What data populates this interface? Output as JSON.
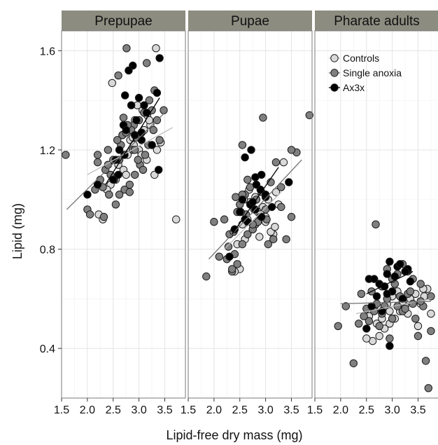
{
  "chart_data": {
    "type": "scatter",
    "xlabel": "Lipid-free dry mass (mg)",
    "ylabel": "Lipid (mg)",
    "xlim": [
      1.5,
      3.9
    ],
    "ylim": [
      0.2,
      1.68
    ],
    "x_ticks": [
      "1.5",
      "2.0",
      "2.5",
      "3.0",
      "3.5"
    ],
    "y_ticks": [
      "0.4",
      "0.8",
      "1.2",
      "1.6"
    ],
    "grid": true,
    "legend": {
      "position": "top-right of third panel",
      "entries": [
        "Controls",
        "Single anoxia",
        "Ax3x"
      ]
    },
    "colors": {
      "Controls": "#d9d9d9",
      "Single anoxia": "#808080",
      "Ax3x": "#000000",
      "strip": "#8c8c80"
    },
    "panels": [
      {
        "name": "Prepupae",
        "series": [
          {
            "name": "Controls",
            "x": [
              3.33,
              2.48,
              2.97,
              3.07,
              3.16,
              3.22,
              2.68,
              2.83,
              2.9,
              3.0,
              3.05,
              3.15,
              3.25,
              2.6,
              2.7,
              2.75,
              3.35,
              3.42,
              3.1,
              3.2,
              2.55,
              2.45,
              2.38,
              2.22,
              2.3,
              3.72,
              3.3,
              2.92,
              2.88,
              2.78
            ],
            "y": [
              1.61,
              1.47,
              1.38,
              1.36,
              1.34,
              1.3,
              1.26,
              1.24,
              1.22,
              1.2,
              1.18,
              1.16,
              1.22,
              1.14,
              1.12,
              1.1,
              1.2,
              1.23,
              1.28,
              1.32,
              1.08,
              1.06,
              1.04,
              0.94,
              0.92,
              0.92,
              1.1,
              1.32,
              1.25,
              1.18
            ]
          },
          {
            "name": "Single anoxia",
            "x": [
              2.76,
              3.15,
              3.3,
              2.6,
              3.48,
              1.58,
              2.2,
              3.35,
              3.2,
              3.1,
              2.9,
              2.85,
              2.95,
              2.7,
              2.65,
              2.4,
              2.5,
              2.35,
              2.25,
              2.0,
              2.05,
              2.32,
              2.55,
              2.62,
              2.72,
              2.82,
              2.92,
              3.02,
              3.12,
              3.28,
              2.45,
              2.4,
              2.58,
              2.68,
              2.78,
              2.88,
              2.98,
              3.08,
              3.18,
              2.52,
              2.42,
              2.3,
              2.15,
              2.62,
              2.82,
              2.92,
              3.25,
              3.4,
              2.2,
              2.75,
              3.0
            ],
            "y": [
              1.61,
              1.55,
              1.44,
              1.5,
              1.36,
              1.18,
              1.18,
              1.32,
              1.4,
              1.35,
              1.3,
              1.28,
              1.25,
              1.33,
              1.22,
              1.2,
              1.16,
              1.12,
              1.08,
              0.96,
              0.94,
              0.93,
              0.98,
              1.02,
              1.04,
              1.06,
              1.1,
              1.14,
              1.18,
              1.28,
              1.1,
              1.14,
              1.24,
              1.26,
              1.3,
              1.2,
              1.16,
              1.12,
              1.22,
              1.08,
              1.02,
              1.05,
              1.04,
              1.16,
              1.03,
              1.2,
              1.36,
              1.24,
              1.15,
              1.27,
              1.32
            ]
          },
          {
            "name": "Ax3x",
            "x": [
              3.4,
              2.88,
              2.8,
              2.73,
              3.0,
              3.1,
              3.15,
              2.7,
              2.75,
              2.92,
              3.05,
              3.25,
              3.38,
              2.62,
              2.55,
              2.2,
              2.0,
              2.85,
              2.95,
              3.05,
              2.6,
              2.5,
              3.35,
              2.72
            ],
            "y": [
              1.57,
              1.54,
              1.52,
              1.42,
              1.41,
              1.38,
              1.35,
              1.3,
              1.28,
              1.26,
              1.24,
              1.22,
              1.12,
              1.2,
              1.16,
              1.06,
              1.02,
              1.38,
              1.32,
              1.27,
              1.1,
              1.08,
              1.43,
              1.18
            ]
          }
        ],
        "fits": [
          {
            "name": "Controls",
            "x": [
              2.0,
              3.65
            ],
            "y": [
              1.1,
              1.29
            ]
          },
          {
            "name": "Single anoxia",
            "x": [
              1.6,
              3.5
            ],
            "y": [
              0.96,
              1.35
            ]
          },
          {
            "name": "Ax3x",
            "x": [
              2.35,
              3.4
            ],
            "y": [
              1.06,
              1.41
            ]
          }
        ]
      },
      {
        "name": "Pupae",
        "series": [
          {
            "name": "Controls",
            "x": [
              3.35,
              3.2,
              3.25,
              2.6,
              2.45,
              2.55,
              2.65,
              2.75,
              2.85,
              2.95,
              3.05,
              3.15,
              2.5,
              2.4,
              2.7,
              2.8,
              2.9,
              3.0,
              3.1,
              3.0,
              2.58,
              2.68,
              2.78,
              2.88,
              3.18
            ],
            "y": [
              1.15,
              1.03,
              0.98,
              0.84,
              0.82,
              0.9,
              0.92,
              0.88,
              0.95,
              0.97,
              1.0,
              0.86,
              0.72,
              0.71,
              0.99,
              1.01,
              0.94,
              0.91,
              0.87,
              0.93,
              1.0,
              1.04,
              0.96,
              0.85,
              0.89
            ]
          },
          {
            "name": "Single anoxia",
            "x": [
              2.95,
              3.85,
              2.55,
              3.6,
              1.85,
              2.1,
              2.2,
              2.3,
              2.4,
              2.5,
              2.6,
              2.7,
              2.8,
              2.9,
              3.0,
              3.1,
              3.2,
              3.3,
              3.4,
              3.5,
              2.35,
              2.45,
              2.55,
              2.65,
              2.75,
              2.85,
              2.45,
              2.55,
              2.65,
              3.05,
              2.0,
              2.25,
              2.35,
              3.3,
              2.62,
              2.72,
              2.82,
              2.92,
              3.02,
              2.42,
              2.52,
              3.15,
              2.38,
              2.28,
              2.75,
              3.5
            ],
            "y": [
              1.33,
              1.34,
              1.22,
              1.19,
              0.69,
              0.77,
              0.92,
              0.86,
              0.78,
              0.98,
              1.02,
              1.05,
              0.9,
              0.93,
              0.96,
              1.07,
              1.15,
              1.05,
              0.84,
              0.93,
              0.71,
              0.74,
              0.82,
              0.86,
              0.88,
              0.91,
              0.95,
              1.02,
              1.08,
              0.82,
              0.91,
              0.76,
              0.72,
              0.97,
              0.94,
              0.98,
              1.0,
              1.03,
              0.92,
              1.01,
              0.95,
              0.84,
              0.87,
              0.81,
              0.9,
              1.2
            ]
          },
          {
            "name": "Ax3x",
            "x": [
              2.72,
              2.6,
              2.92,
              3.45,
              2.8,
              2.9,
              3.0,
              2.7,
              2.5,
              2.4,
              2.3,
              2.6,
              2.8,
              2.82,
              2.55,
              2.75,
              2.92,
              3.12,
              3.0,
              2.65
            ],
            "y": [
              1.2,
              1.17,
              1.1,
              1.07,
              1.09,
              1.04,
              1.01,
              0.98,
              0.95,
              0.88,
              0.77,
              0.92,
              0.96,
              1.06,
              1.0,
              0.99,
              0.93,
              0.97,
              1.02,
              0.91
            ]
          }
        ],
        "fits": [
          {
            "name": "Controls",
            "x": [
              2.2,
              3.3
            ],
            "y": [
              0.8,
              1.03
            ]
          },
          {
            "name": "Single anoxia",
            "x": [
              1.9,
              3.7
            ],
            "y": [
              0.76,
              1.16
            ]
          },
          {
            "name": "Ax3x",
            "x": [
              2.35,
              3.25
            ],
            "y": [
              0.86,
              1.13
            ]
          }
        ]
      },
      {
        "name": "Pharate adults",
        "series": [
          {
            "name": "Controls",
            "x": [
              3.68,
              3.75,
              2.62,
              2.75,
              2.85,
              2.95,
              3.05,
              3.15,
              3.25,
              3.35,
              3.45,
              3.55,
              2.55,
              2.65,
              2.9,
              3.0,
              3.1,
              3.2,
              3.3,
              2.5,
              2.7,
              2.8,
              3.6,
              3.62,
              3.5,
              2.95
            ],
            "y": [
              0.64,
              0.54,
              0.43,
              0.45,
              0.48,
              0.5,
              0.52,
              0.55,
              0.57,
              0.6,
              0.62,
              0.58,
              0.53,
              0.56,
              0.58,
              0.61,
              0.63,
              0.59,
              0.54,
              0.44,
              0.5,
              0.52,
              0.64,
              0.61,
              0.49,
              0.55
            ]
          },
          {
            "name": "Single anoxia",
            "x": [
              2.68,
              1.95,
              2.25,
              3.65,
              3.7,
              2.1,
              2.4,
              2.5,
              2.6,
              2.7,
              2.8,
              2.9,
              3.0,
              3.1,
              3.2,
              3.3,
              3.4,
              3.5,
              3.6,
              3.75,
              2.55,
              2.65,
              2.75,
              2.85,
              2.95,
              3.05,
              3.15,
              3.25,
              3.35,
              3.45,
              3.55,
              2.45,
              2.35,
              3.1,
              3.2,
              3.3,
              2.8,
              2.9,
              3.0,
              3.4,
              3.55,
              3.75
            ],
            "y": [
              0.9,
              0.49,
              0.34,
              0.35,
              0.24,
              0.57,
              0.62,
              0.56,
              0.63,
              0.58,
              0.54,
              0.6,
              0.52,
              0.57,
              0.55,
              0.62,
              0.68,
              0.45,
              0.57,
              0.47,
              0.51,
              0.55,
              0.49,
              0.57,
              0.44,
              0.66,
              0.61,
              0.56,
              0.63,
              0.52,
              0.59,
              0.53,
              0.5,
              0.7,
              0.74,
              0.71,
              0.65,
              0.72,
              0.68,
              0.58,
              0.66,
              0.61
            ]
          },
          {
            "name": "Ax3x",
            "x": [
              2.95,
              3.1,
              3.3,
              2.55,
              2.75,
              2.9,
              3.0,
              3.2,
              2.7,
              2.85,
              2.6,
              2.5,
              2.8,
              3.05,
              3.25,
              2.65,
              2.95,
              3.15,
              3.35,
              2.9
            ],
            "y": [
              0.75,
              0.73,
              0.72,
              0.68,
              0.66,
              0.7,
              0.63,
              0.6,
              0.61,
              0.65,
              0.57,
              0.48,
              0.55,
              0.69,
              0.71,
              0.68,
              0.41,
              0.74,
              0.67,
              0.62
            ]
          }
        ],
        "fits": [
          {
            "name": "Controls",
            "x": [
              2.3,
              3.75
            ],
            "y": [
              0.54,
              0.6
            ]
          },
          {
            "name": "Single anoxia",
            "x": [
              2.0,
              3.75
            ],
            "y": [
              0.58,
              0.59
            ]
          },
          {
            "name": "Ax3x",
            "x": [
              2.5,
              3.4
            ],
            "y": [
              0.62,
              0.71
            ]
          }
        ]
      }
    ]
  }
}
